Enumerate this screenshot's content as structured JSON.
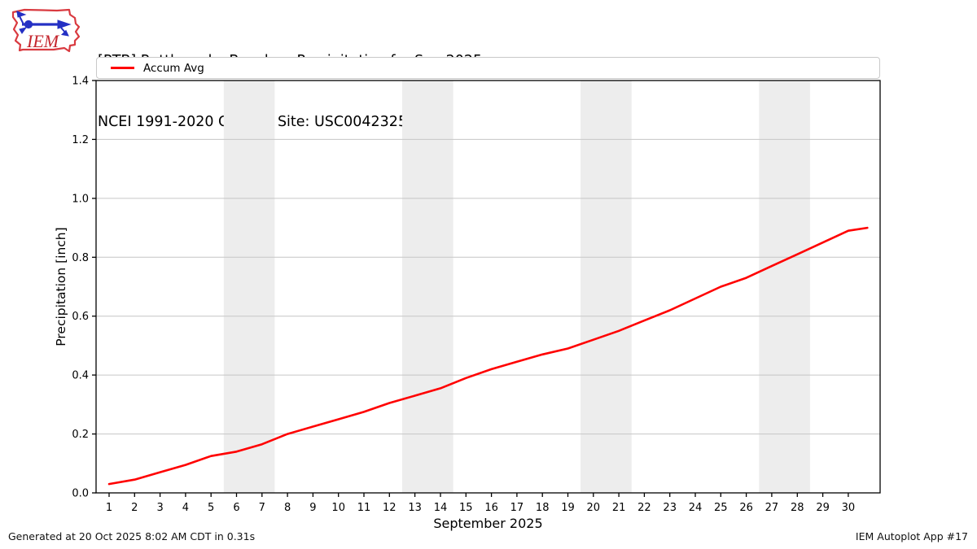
{
  "header": {
    "logo": "IEM",
    "title_line1": "[RTB] Rattlesnake Bench  :: Precipitation for Sep 2025",
    "title_line2": "NCEI 1991-2020 Climate Site: USC00423254"
  },
  "legend": {
    "label": "Accum Avg",
    "color": "#ff0000"
  },
  "chart_data": {
    "type": "line",
    "title": "[RTB] Rattlesnake Bench  :: Precipitation for Sep 2025",
    "subtitle": "NCEI 1991-2020 Climate Site: USC00423254",
    "xlabel": "September 2025",
    "ylabel": "Precipitation [inch]",
    "xlim": [
      0.49,
      31.25
    ],
    "ylim": [
      0.0,
      1.4
    ],
    "yticks": [
      0.0,
      0.2,
      0.4,
      0.6,
      0.8,
      1.0,
      1.2,
      1.4
    ],
    "xticks": [
      1,
      2,
      3,
      4,
      5,
      6,
      7,
      8,
      9,
      10,
      11,
      12,
      13,
      14,
      15,
      16,
      17,
      18,
      19,
      20,
      21,
      22,
      23,
      24,
      25,
      26,
      27,
      28,
      29,
      30
    ],
    "grid": "horizontal",
    "gridcolor": "#c6c6c6",
    "band_color": "#ededed",
    "weekend_bands": [
      [
        5.5,
        7.5
      ],
      [
        12.5,
        14.5
      ],
      [
        19.5,
        21.5
      ],
      [
        26.5,
        28.5
      ]
    ],
    "legend_position": "top",
    "series": [
      {
        "name": "Accum Avg",
        "color": "#ff0000",
        "x": [
          1,
          2,
          3,
          4,
          5,
          6,
          7,
          8,
          9,
          10,
          11,
          12,
          13,
          14,
          15,
          16,
          17,
          18,
          19,
          20,
          21,
          22,
          23,
          24,
          25,
          26,
          27,
          28,
          29,
          30,
          30.75
        ],
        "values": [
          0.03,
          0.045,
          0.07,
          0.095,
          0.125,
          0.14,
          0.165,
          0.2,
          0.225,
          0.25,
          0.275,
          0.305,
          0.33,
          0.355,
          0.39,
          0.42,
          0.445,
          0.47,
          0.49,
          0.52,
          0.55,
          0.585,
          0.62,
          0.66,
          0.7,
          0.73,
          0.77,
          0.81,
          0.85,
          0.89,
          0.9
        ]
      }
    ]
  },
  "footer": {
    "generated": "Generated at 20 Oct 2025 8:02 AM CDT in 0.31s",
    "app": "IEM Autoplot App #17"
  }
}
